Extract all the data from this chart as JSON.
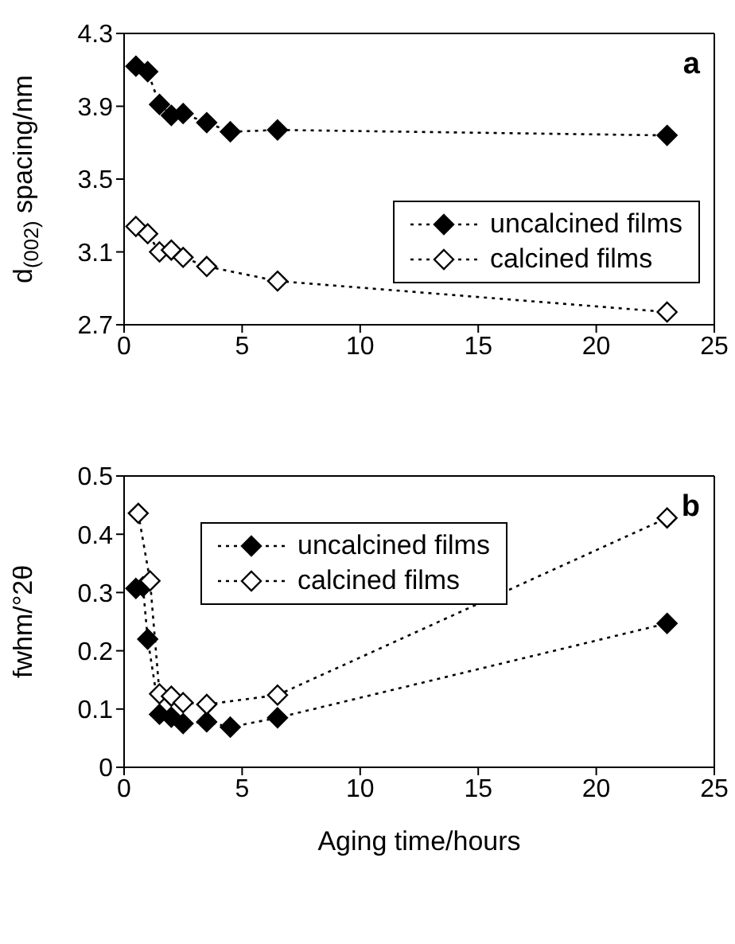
{
  "chart_data": [
    {
      "type": "line",
      "ylabel": "d$_{(002)}$ spacing/nm",
      "annotations": [
        "a"
      ],
      "xlim": [
        0,
        25
      ],
      "xticks": [
        0,
        5,
        10,
        15,
        20,
        25
      ],
      "ylim": [
        2.7,
        4.3
      ],
      "yticks": [
        2.7,
        3.1,
        3.5,
        3.9,
        4.3
      ],
      "legend": "right",
      "marker": "diamond",
      "line_style": "dotted",
      "grid": false,
      "series": [
        {
          "name": "uncalcined films",
          "color": "#000000",
          "x": [
            0.5,
            1,
            1.5,
            2,
            2.5,
            3.5,
            4.5,
            6.5,
            23
          ],
          "values": [
            4.12,
            4.09,
            3.91,
            3.85,
            3.86,
            3.81,
            3.76,
            3.77,
            3.74
          ]
        },
        {
          "name": "calcined films",
          "color": "#000000",
          "x": [
            0.5,
            1,
            1.5,
            2,
            2.5,
            3.5,
            6.5,
            23
          ],
          "values": [
            3.24,
            3.2,
            3.1,
            3.11,
            3.07,
            3.02,
            2.94,
            2.77
          ]
        }
      ]
    },
    {
      "type": "line",
      "xlabel": "Aging time/hours",
      "ylabel": "fwhm/°2θ",
      "annotations": [
        "b"
      ],
      "xlim": [
        0,
        25
      ],
      "xticks": [
        0,
        5,
        10,
        15,
        20,
        25
      ],
      "ylim": [
        0,
        0.5
      ],
      "yticks": [
        0,
        0.1,
        0.2,
        0.3,
        0.4,
        0.5
      ],
      "legend": "top",
      "marker": "diamond",
      "line_style": "dotted",
      "grid": false,
      "series": [
        {
          "name": "uncalcined films",
          "color": "#000000",
          "x": [
            0.5,
            0.8,
            1,
            1.5,
            2,
            2.5,
            3.5,
            4.5,
            6.5,
            23
          ],
          "values": [
            0.307,
            0.31,
            0.22,
            0.091,
            0.086,
            0.075,
            0.078,
            0.069,
            0.085,
            0.247
          ]
        },
        {
          "name": "calcined films",
          "color": "#000000",
          "x": [
            0.6,
            1.1,
            1.5,
            2,
            2.5,
            3.5,
            6.5,
            23
          ],
          "values": [
            0.436,
            0.32,
            0.126,
            0.122,
            0.111,
            0.108,
            0.124,
            0.428
          ]
        }
      ]
    }
  ]
}
